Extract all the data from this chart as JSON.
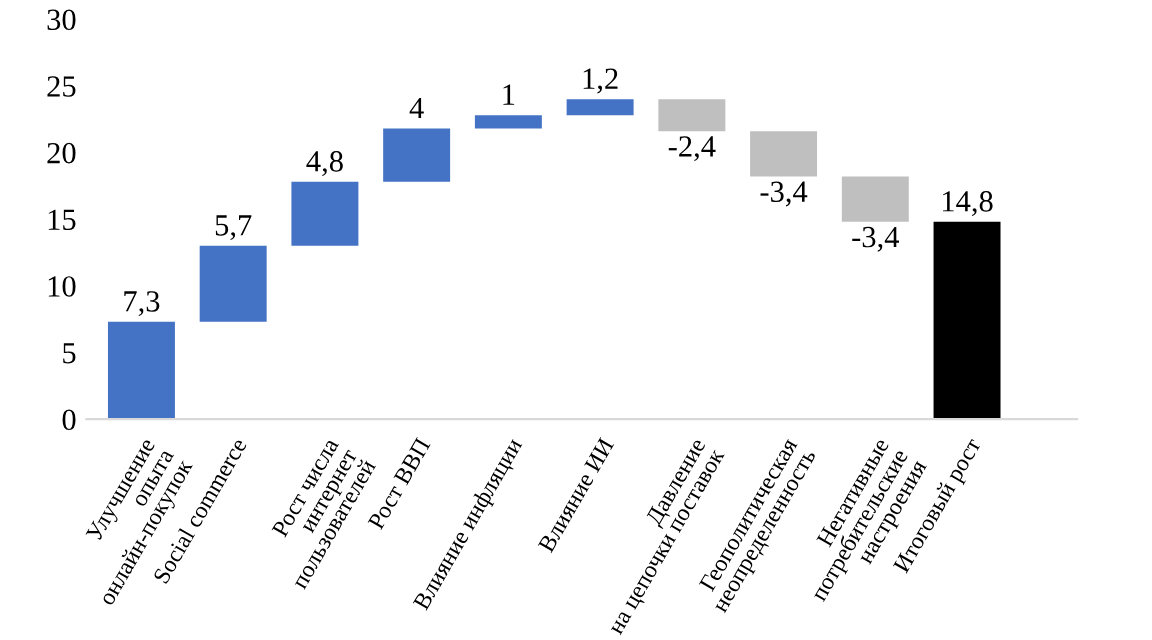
{
  "chart_data": {
    "type": "bar",
    "categories": [
      "Улучшение\nопыта\nонлайн-покупок",
      "Social commerce",
      "Рост числа\nинтернет\nпользователей",
      "Рост ВВП",
      "Влияние инфляции",
      "Влияние ИИ",
      "Давление\nна цепочки поставок",
      "Геополитическая\nнеопределенность",
      "Негативные\nпотребительские\nнастроения",
      "Итоговый рост"
    ],
    "values": [
      7.3,
      5.7,
      4.8,
      4,
      1,
      1.2,
      -2.4,
      -3.4,
      -3.4,
      14.8
    ],
    "base": [
      0,
      7.3,
      13.0,
      17.8,
      21.8,
      22.8,
      24.0,
      21.6,
      18.2,
      0
    ],
    "colors": [
      "#4472c4",
      "#4472c4",
      "#4472c4",
      "#4472c4",
      "#4472c4",
      "#4472c4",
      "#bfbfbf",
      "#bfbfbf",
      "#bfbfbf",
      "#000000"
    ],
    "value_labels": [
      "7,3",
      "5,7",
      "4,8",
      "4",
      "1",
      "1,2",
      "-2,4",
      "-3,4",
      "-3,4",
      "14,8"
    ],
    "ylim": [
      0,
      30
    ],
    "yticks": [
      0,
      5,
      10,
      15,
      20,
      25,
      30
    ],
    "grid": false,
    "legend": false
  }
}
